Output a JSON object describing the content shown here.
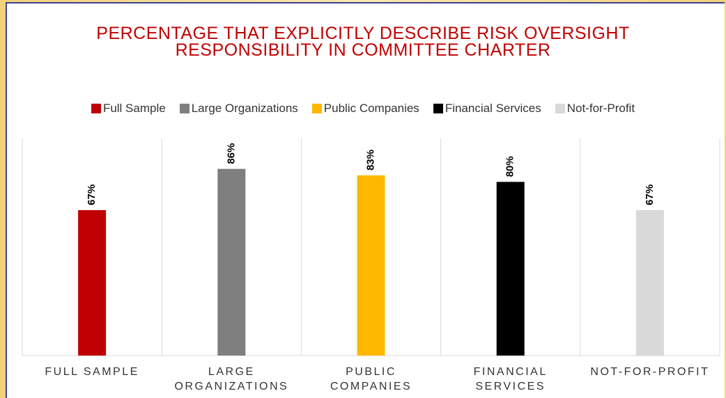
{
  "chart_data": {
    "type": "bar",
    "title": "PERCENTAGE THAT EXPLICITLY DESCRIBE RISK OVERSIGHT RESPONSIBILITY IN COMMITTEE CHARTER",
    "categories": [
      "FULL SAMPLE",
      "LARGE ORGANIZATIONS",
      "PUBLIC COMPANIES",
      "FINANCIAL SERVICES",
      "NOT-FOR-PROFIT"
    ],
    "series": [
      {
        "name": "Full Sample",
        "color": "#c00000",
        "values": [
          67,
          null,
          null,
          null,
          null
        ],
        "value_labels": [
          "67%",
          null,
          null,
          null,
          null
        ]
      },
      {
        "name": "Large Organizations",
        "color": "#7f7f7f",
        "values": [
          null,
          86,
          null,
          null,
          null
        ],
        "value_labels": [
          null,
          "86%",
          null,
          null,
          null
        ]
      },
      {
        "name": "Public Companies",
        "color": "#ffb800",
        "values": [
          null,
          null,
          83,
          null,
          null
        ],
        "value_labels": [
          null,
          null,
          "83%",
          null,
          null
        ]
      },
      {
        "name": "Financial Services",
        "color": "#000000",
        "values": [
          null,
          null,
          null,
          80,
          null
        ],
        "value_labels": [
          null,
          null,
          null,
          "80%",
          null
        ]
      },
      {
        "name": "Not-for-Profit",
        "color": "#d9d9d9",
        "values": [
          null,
          null,
          null,
          null,
          67
        ],
        "value_labels": [
          null,
          null,
          null,
          null,
          "67%"
        ]
      }
    ],
    "ylim": [
      0,
      100
    ],
    "legend": "top"
  }
}
